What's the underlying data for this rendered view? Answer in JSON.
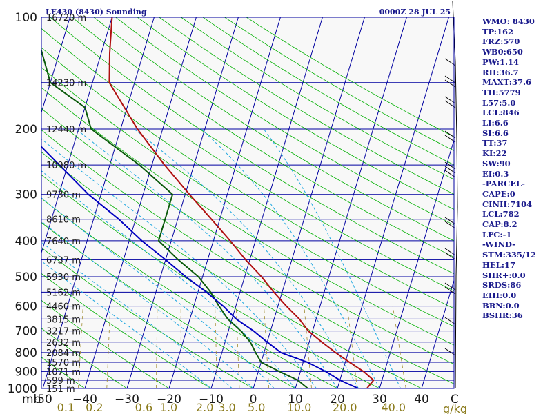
{
  "header": {
    "station": "LE430 (8430) Sounding",
    "time": "0000Z 28 JUL 25"
  },
  "units": {
    "pressure": "mb",
    "temperature": "C",
    "mixing_ratio": "g/kg"
  },
  "colors": {
    "background": "#f8f8f8",
    "isobar": "#0000a0",
    "isotherm": "#0000a0",
    "dry_adiabat": "#00b000",
    "moist_adiabat": "#20a8e0",
    "mixing_ratio": "#a08c30",
    "temperature": "#b01010",
    "dewpoint": "#0a5a0a",
    "parcel": "#0000c0",
    "wind": "#000000",
    "stats": "#1a1a8c"
  },
  "chart_data": {
    "type": "line",
    "title": "LE430 (8430) Sounding",
    "xlabel": "C",
    "ylabel": "mb",
    "xlim": [
      -50,
      50
    ],
    "ylim": [
      1000,
      100
    ],
    "yscale": "log",
    "grid": true,
    "pressure_ticks": [
      {
        "p": 100,
        "label": "100"
      },
      {
        "p": 200,
        "label": "200"
      },
      {
        "p": 300,
        "label": "300"
      },
      {
        "p": 400,
        "label": "400"
      },
      {
        "p": 500,
        "label": "500"
      },
      {
        "p": 600,
        "label": "600"
      },
      {
        "p": 700,
        "label": "700"
      },
      {
        "p": 800,
        "label": "800"
      },
      {
        "p": 900,
        "label": "900"
      },
      {
        "p": 1000,
        "label": "1000"
      }
    ],
    "temperature_ticks": [
      {
        "t": -50,
        "label": "-50"
      },
      {
        "t": -40,
        "label": "−40"
      },
      {
        "t": -30,
        "label": "−30"
      },
      {
        "t": -20,
        "label": "−20"
      },
      {
        "t": -10,
        "label": "−10"
      },
      {
        "t": 0,
        "label": "0"
      },
      {
        "t": 10,
        "label": "10"
      },
      {
        "t": 20,
        "label": "20"
      },
      {
        "t": 30,
        "label": "30"
      },
      {
        "t": 40,
        "label": "40"
      }
    ],
    "mixing_ratio_ticks": [
      {
        "w": 0.1,
        "label": "0.1"
      },
      {
        "w": 0.2,
        "label": "0.2"
      },
      {
        "w": 0.6,
        "label": "0.6"
      },
      {
        "w": 1.0,
        "label": "1.0"
      },
      {
        "w": 2.0,
        "label": "2.0"
      },
      {
        "w": 3.0,
        "label": "3.0"
      },
      {
        "w": 5.0,
        "label": "5.0"
      },
      {
        "w": 10.0,
        "label": "10.0"
      },
      {
        "w": 20.0,
        "label": "20.0"
      },
      {
        "w": 40.0,
        "label": "40.0"
      }
    ],
    "height_labels": [
      {
        "p": 100,
        "label": "16720 m"
      },
      {
        "p": 150,
        "label": "14230 m"
      },
      {
        "p": 200,
        "label": "12440 m"
      },
      {
        "p": 250,
        "label": "10980 m"
      },
      {
        "p": 300,
        "label": "9730 m"
      },
      {
        "p": 350,
        "label": "8610 m"
      },
      {
        "p": 400,
        "label": "7640 m"
      },
      {
        "p": 450,
        "label": "6737 m"
      },
      {
        "p": 500,
        "label": "5930 m"
      },
      {
        "p": 550,
        "label": "5162 m"
      },
      {
        "p": 600,
        "label": "4460 m"
      },
      {
        "p": 650,
        "label": "3815 m"
      },
      {
        "p": 700,
        "label": "3217 m"
      },
      {
        "p": 750,
        "label": "2632 m"
      },
      {
        "p": 800,
        "label": "2084 m"
      },
      {
        "p": 850,
        "label": "1570 m"
      },
      {
        "p": 900,
        "label": "1071 m"
      },
      {
        "p": 950,
        "label": "599 m"
      },
      {
        "p": 1000,
        "label": "151 m"
      }
    ],
    "series": [
      {
        "key": "temperature",
        "points": [
          [
            1000,
            27
          ],
          [
            950,
            28
          ],
          [
            900,
            25
          ],
          [
            850,
            21
          ],
          [
            800,
            17
          ],
          [
            750,
            13
          ],
          [
            700,
            9
          ],
          [
            650,
            6
          ],
          [
            600,
            2
          ],
          [
            550,
            -2
          ],
          [
            500,
            -6
          ],
          [
            450,
            -11
          ],
          [
            400,
            -16
          ],
          [
            350,
            -22
          ],
          [
            300,
            -29
          ],
          [
            250,
            -37
          ],
          [
            200,
            -46
          ],
          [
            150,
            -56
          ],
          [
            125,
            -58
          ],
          [
            100,
            -60
          ]
        ]
      },
      {
        "key": "dewpoint",
        "points": [
          [
            1000,
            13
          ],
          [
            950,
            10
          ],
          [
            900,
            5
          ],
          [
            850,
            0
          ],
          [
            800,
            -2
          ],
          [
            750,
            -4
          ],
          [
            700,
            -7
          ],
          [
            650,
            -11
          ],
          [
            600,
            -14
          ],
          [
            550,
            -17
          ],
          [
            500,
            -21
          ],
          [
            450,
            -27
          ],
          [
            400,
            -33
          ],
          [
            350,
            -33
          ],
          [
            300,
            -33
          ],
          [
            250,
            -43
          ],
          [
            200,
            -57
          ],
          [
            175,
            -60
          ],
          [
            150,
            -70
          ],
          [
            100,
            -79
          ]
        ]
      },
      {
        "key": "parcel",
        "points": [
          [
            1000,
            25
          ],
          [
            950,
            20
          ],
          [
            900,
            16
          ],
          [
            850,
            11
          ],
          [
            800,
            4
          ],
          [
            750,
            0
          ],
          [
            700,
            -4
          ],
          [
            650,
            -9
          ],
          [
            600,
            -13
          ],
          [
            550,
            -18
          ],
          [
            500,
            -24
          ],
          [
            450,
            -30
          ],
          [
            400,
            -37
          ],
          [
            350,
            -44
          ],
          [
            300,
            -53
          ],
          [
            250,
            -62
          ],
          [
            200,
            -73
          ],
          [
            150,
            -87
          ],
          [
            125,
            -94
          ],
          [
            100,
            -103
          ]
        ]
      }
    ]
  },
  "stats": [
    "WMO: 8430",
    "TP:162",
    "FRZ:570",
    "WB0:650",
    "PW:1.14",
    "RH:36.7",
    "MAXT:37.6",
    "TH:5779",
    "L57:5.0",
    "LCL:846",
    "LI:6.6",
    "SI:6.6",
    "TT:37",
    "KI:22",
    "SW:90",
    "EI:0.3",
    "-PARCEL-",
    "CAPE:0",
    "CINH:7104",
    "LCL:782",
    "CAP:8.2",
    "LFC:-1",
    "-WIND-",
    "STM:335/12",
    "HEL:17",
    "SHR+:0.0",
    "SRDS:86",
    "EHI:0.0",
    "BRN:0.0",
    "BSHR:36"
  ]
}
